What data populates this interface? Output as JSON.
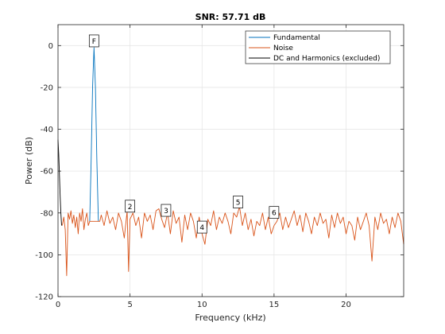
{
  "chart_data": {
    "type": "line",
    "title": "SNR:  57.71 dB",
    "xlabel": "Frequency (kHz)",
    "ylabel": "Power (dB)",
    "xlim": [
      0,
      24
    ],
    "ylim": [
      -120,
      10
    ],
    "xticks": [
      0,
      5,
      10,
      15,
      20
    ],
    "yticks": [
      -120,
      -100,
      -80,
      -60,
      -40,
      -20,
      0
    ],
    "grid": true,
    "legend_position": "top-right",
    "colors": {
      "fundamental": "#0072BD",
      "noise": "#D95319",
      "dc_harmonics": "#000000",
      "grid": "#e6e6e6",
      "axis": "#262626"
    },
    "series": [
      {
        "name": "Fundamental",
        "color": "#0072BD",
        "x": [
          2.2,
          2.3,
          2.4,
          2.5,
          2.6,
          2.7,
          2.8
        ],
        "y": [
          -84,
          -55,
          -20,
          -1,
          -20,
          -55,
          -84
        ]
      },
      {
        "name": "Noise",
        "color": "#D95319",
        "x": [
          0.3,
          0.4,
          0.5,
          0.6,
          0.7,
          0.8,
          0.9,
          1.0,
          1.1,
          1.2,
          1.3,
          1.4,
          1.5,
          1.6,
          1.7,
          1.8,
          1.9,
          2.0,
          2.1,
          2.2,
          2.9,
          3.0,
          3.2,
          3.4,
          3.6,
          3.8,
          4.0,
          4.2,
          4.4,
          4.6,
          4.8,
          4.9,
          5.0,
          5.2,
          5.4,
          5.6,
          5.8,
          6.0,
          6.2,
          6.4,
          6.6,
          6.8,
          7.0,
          7.2,
          7.4,
          7.6,
          7.8,
          8.0,
          8.2,
          8.4,
          8.6,
          8.8,
          9.0,
          9.2,
          9.4,
          9.6,
          9.8,
          10.0,
          10.2,
          10.4,
          10.6,
          10.8,
          11.0,
          11.2,
          11.4,
          11.6,
          11.8,
          12.0,
          12.2,
          12.4,
          12.6,
          12.8,
          13.0,
          13.2,
          13.4,
          13.6,
          13.8,
          14.0,
          14.2,
          14.4,
          14.6,
          14.8,
          15.0,
          15.2,
          15.4,
          15.6,
          15.8,
          16.0,
          16.2,
          16.4,
          16.6,
          16.8,
          17.0,
          17.2,
          17.4,
          17.6,
          17.8,
          18.0,
          18.2,
          18.4,
          18.6,
          18.8,
          19.0,
          19.2,
          19.4,
          19.6,
          19.8,
          20.0,
          20.2,
          20.4,
          20.6,
          20.8,
          21.0,
          21.2,
          21.4,
          21.6,
          21.8,
          22.0,
          22.2,
          22.4,
          22.6,
          22.8,
          23.0,
          23.2,
          23.4,
          23.6,
          23.8,
          24.0
        ],
        "y": [
          -86,
          -82,
          -88,
          -110,
          -80,
          -83,
          -79,
          -85,
          -81,
          -87,
          -82,
          -90,
          -80,
          -84,
          -78,
          -88,
          -83,
          -80,
          -86,
          -84,
          -84,
          -81,
          -86,
          -79,
          -85,
          -82,
          -88,
          -80,
          -84,
          -92,
          -79,
          -108,
          -83,
          -80,
          -86,
          -82,
          -92,
          -80,
          -84,
          -81,
          -88,
          -79,
          -78,
          -83,
          -87,
          -80,
          -90,
          -79,
          -85,
          -82,
          -94,
          -81,
          -88,
          -80,
          -84,
          -92,
          -82,
          -90,
          -95,
          -83,
          -86,
          -79,
          -88,
          -82,
          -85,
          -80,
          -84,
          -90,
          -80,
          -82,
          -77,
          -86,
          -80,
          -88,
          -83,
          -91,
          -84,
          -86,
          -80,
          -88,
          -82,
          -90,
          -86,
          -84,
          -80,
          -88,
          -82,
          -87,
          -83,
          -79,
          -86,
          -81,
          -89,
          -80,
          -84,
          -90,
          -82,
          -86,
          -80,
          -85,
          -83,
          -92,
          -81,
          -87,
          -80,
          -85,
          -82,
          -90,
          -84,
          -86,
          -93,
          -82,
          -88,
          -84,
          -80,
          -86,
          -103,
          -82,
          -88,
          -80,
          -85,
          -83,
          -90,
          -82,
          -87,
          -80,
          -84,
          -95
        ]
      },
      {
        "name": "DC and Harmonics (excluded)",
        "color": "#000000",
        "x": [
          0.0,
          0.05,
          0.1,
          0.15,
          0.2,
          0.25
        ],
        "y": [
          -45,
          -52,
          -62,
          -72,
          -80,
          -86
        ]
      }
    ],
    "harmonic_markers": [
      {
        "label": "F",
        "x": 2.5,
        "y": -1
      },
      {
        "label": "2",
        "x": 5.0,
        "y": -80
      },
      {
        "label": "3",
        "x": 7.5,
        "y": -82
      },
      {
        "label": "4",
        "x": 10.0,
        "y": -90
      },
      {
        "label": "5",
        "x": 12.5,
        "y": -78
      },
      {
        "label": "6",
        "x": 15.0,
        "y": -83
      }
    ]
  }
}
